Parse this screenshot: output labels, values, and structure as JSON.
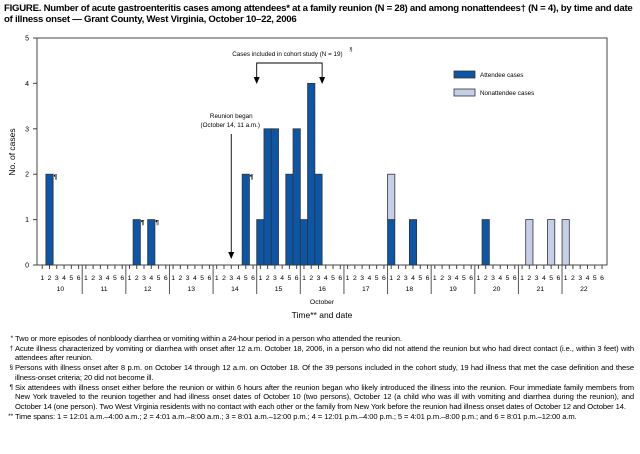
{
  "title": "FIGURE. Number of acute gastroenteritis cases among attendees* at a family reunion (N = 28) and among nonattendees† (N = 4), by time and date of illness onset — Grant County, West Virginia, October 10–22, 2006",
  "chart_data": {
    "type": "bar",
    "stacked": true,
    "ylabel": "No. of cases",
    "xlabel": "Time** and date",
    "xlabel_month": "October",
    "ylim": [
      0,
      5
    ],
    "yticks": [
      0,
      1,
      2,
      3,
      4,
      5
    ],
    "days": [
      "10",
      "11",
      "12",
      "13",
      "14",
      "15",
      "16",
      "17",
      "18",
      "19",
      "20",
      "21",
      "22"
    ],
    "slot_labels": [
      "1",
      "2",
      "3",
      "4",
      "5",
      "6"
    ],
    "legend": {
      "placement": "top-right",
      "entries": [
        "Attendee cases",
        "Nonattendee cases"
      ]
    },
    "colors": {
      "attendee": "#0d56a6",
      "nonattendee": "#c5cfe8",
      "outline": "#333333"
    },
    "series": [
      {
        "name": "Attendee cases",
        "points": [
          {
            "day": 10,
            "slot": 2,
            "value": 2,
            "mark": "¶"
          },
          {
            "day": 12,
            "slot": 2,
            "value": 1,
            "mark": "¶"
          },
          {
            "day": 12,
            "slot": 4,
            "value": 1,
            "mark": "¶"
          },
          {
            "day": 14,
            "slot": 5,
            "value": 2,
            "mark": "¶"
          },
          {
            "day": 15,
            "slot": 1,
            "value": 1
          },
          {
            "day": 15,
            "slot": 2,
            "value": 3
          },
          {
            "day": 15,
            "slot": 3,
            "value": 3
          },
          {
            "day": 15,
            "slot": 5,
            "value": 2
          },
          {
            "day": 15,
            "slot": 6,
            "value": 3
          },
          {
            "day": 16,
            "slot": 1,
            "value": 1
          },
          {
            "day": 16,
            "slot": 2,
            "value": 4
          },
          {
            "day": 16,
            "slot": 3,
            "value": 2
          },
          {
            "day": 18,
            "slot": 1,
            "value": 1
          },
          {
            "day": 18,
            "slot": 4,
            "value": 1
          },
          {
            "day": 20,
            "slot": 2,
            "value": 1
          }
        ]
      },
      {
        "name": "Nonattendee cases",
        "points": [
          {
            "day": 18,
            "slot": 1,
            "value": 1
          },
          {
            "day": 21,
            "slot": 2,
            "value": 1
          },
          {
            "day": 21,
            "slot": 5,
            "value": 1
          },
          {
            "day": 22,
            "slot": 1,
            "value": 1
          }
        ]
      }
    ],
    "annotations": {
      "cohort": {
        "text": "Cases included in cohort study (N = 19)",
        "mark": "§",
        "from": {
          "day": 15,
          "slot": 1
        },
        "to": {
          "day": 16,
          "slot": 3
        }
      },
      "reunion": {
        "line1": "Reunion began",
        "line2": "(October 14, 11 a.m.)",
        "at": {
          "day": 14,
          "slot": 3
        }
      }
    }
  },
  "footnotes": [
    {
      "mark": "*",
      "text": "Two or more episodes of nonbloody diarrhea or vomiting within a 24-hour period in a person who attended the reunion."
    },
    {
      "mark": "†",
      "text": "Acute illness characterized by vomiting or diarrhea with onset after 12 a.m. October 18, 2006, in a person who did not attend the reunion but who had direct contact (i.e., within 3 feet) with attendees after reunion."
    },
    {
      "mark": "§",
      "text": "Persons with illness onset after 8 p.m. on October 14 through 12 a.m. on October 18. Of the 39 persons included in the cohort study, 19 had illness that met the case definition and these illness-onset criteria; 20 did not become ill."
    },
    {
      "mark": "¶",
      "text": "Six attendees with illness onset either before the reunion or within 6 hours after the reunion began who likely introduced the illness into the reunion. Four immediate family members from New York traveled to the reunion together and had illness onset dates of October 10 (two persons), October 12 (a child who was ill with vomiting and diarrhea during the reunion), and October 14 (one person). Two West Virginia residents with no contact with each other or the family from New York before the reunion had illness onset dates of October 12 and October 14."
    },
    {
      "mark": "**",
      "text": "Time spans: 1 = 12:01 a.m.–4:00 a.m.; 2 = 4:01 a.m.–8:00 a.m.; 3 = 8:01 a.m.–12:00 p.m.; 4 = 12:01 p.m.–4:00 p.m.; 5 = 4:01 p.m.–8:00 p.m.; and 6 = 8:01 p.m.–12:00 a.m."
    }
  ]
}
